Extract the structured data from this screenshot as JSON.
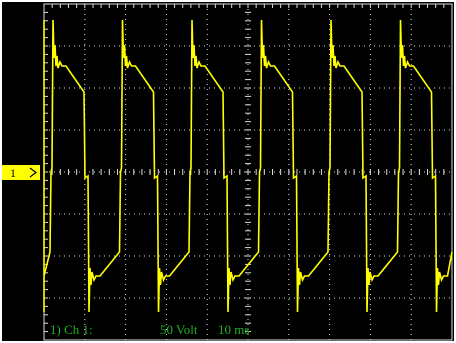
{
  "screen": {
    "channel_marker": "1",
    "footer": {
      "channel": "1) Ch 1:",
      "scale": "50 Volt",
      "timebase": "10 ms"
    }
  }
}
